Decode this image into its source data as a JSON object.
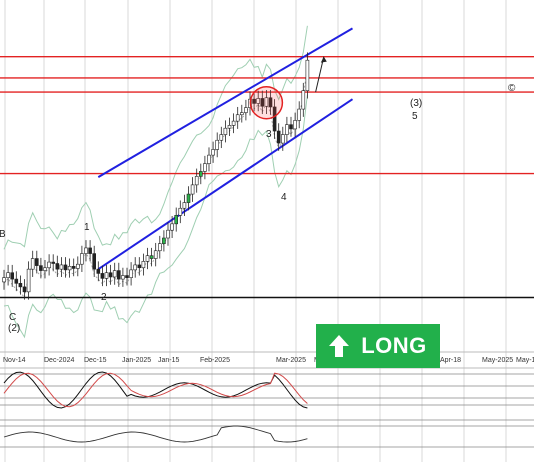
{
  "chart_data": {
    "type": "candlestick",
    "x_tick_labels": [
      "Nov-14",
      "Dec-2024",
      "Dec-15",
      "Jan-2025",
      "Jan-15",
      "Feb-2025",
      "Mar-2025",
      "Ma",
      "Apr-18",
      "May-2025",
      "May-1"
    ],
    "wave_labels": [
      {
        "text": "B"
      },
      {
        "text": "C"
      },
      {
        "text": "(2)"
      },
      {
        "text": "1"
      },
      {
        "text": "2"
      },
      {
        "text": "3"
      },
      {
        "text": "4"
      },
      {
        "text": "(3)"
      },
      {
        "text": "5"
      }
    ],
    "copyright_symbol": "©",
    "signal_badge": "LONG",
    "price_series": {
      "name": "",
      "close": [
        0.8,
        1.5,
        0.6,
        0.0,
        -0.5,
        -1.2,
        2.0,
        3.5,
        2.5,
        1.8,
        2.2,
        3.0,
        2.8,
        2.0,
        2.6,
        1.9,
        2.4,
        2.1,
        2.7,
        4.2,
        5.0,
        4.2,
        2.0,
        1.4,
        0.7,
        1.5,
        0.9,
        1.8,
        0.6,
        1.1,
        0.8,
        1.9,
        2.6,
        2.2,
        3.1,
        3.9,
        3.5,
        4.6,
        5.6,
        6.4,
        7.5,
        8.4,
        9.6,
        10.6,
        11.4,
        12.6,
        13.9,
        15.1,
        15.8,
        16.9,
        18.1,
        18.9,
        20.2,
        21.0,
        21.9,
        22.3,
        22.9,
        23.8,
        24.1,
        24.8,
        26.0,
        25.4,
        26.1,
        25.0,
        26.2,
        24.9,
        21.5,
        19.8,
        21.0,
        22.4,
        21.8,
        23.0,
        24.6,
        27.2,
        31.5
      ]
    },
    "horizontal_lines": [
      {
        "name": "resistance-1",
        "y": 32.0,
        "color": "#e32222"
      },
      {
        "name": "resistance-2",
        "y": 29.0,
        "color": "#e32222"
      },
      {
        "name": "resistance-3",
        "y": 27.0,
        "color": "#e32222"
      },
      {
        "name": "support-1",
        "y": 15.5,
        "color": "#e32222"
      },
      {
        "name": "base-line",
        "y": -2.0,
        "color": "#111111"
      }
    ],
    "channel": {
      "color": "#2020e0",
      "upper": {
        "from": [
          23,
          15.0
        ],
        "to": [
          85,
          36.0
        ]
      },
      "lower": {
        "from": [
          23,
          2.0
        ],
        "to": [
          85,
          26.0
        ]
      }
    },
    "target_arrow": {
      "from": [
        76,
        27.0
      ],
      "to": [
        78,
        32.0
      ]
    },
    "highlight_circle": {
      "x_index": 64,
      "y": 25.5,
      "color": "#e32222"
    },
    "y_range": [
      -8,
      40
    ],
    "grid": true,
    "legend": "none",
    "indicator_panels": 2
  }
}
